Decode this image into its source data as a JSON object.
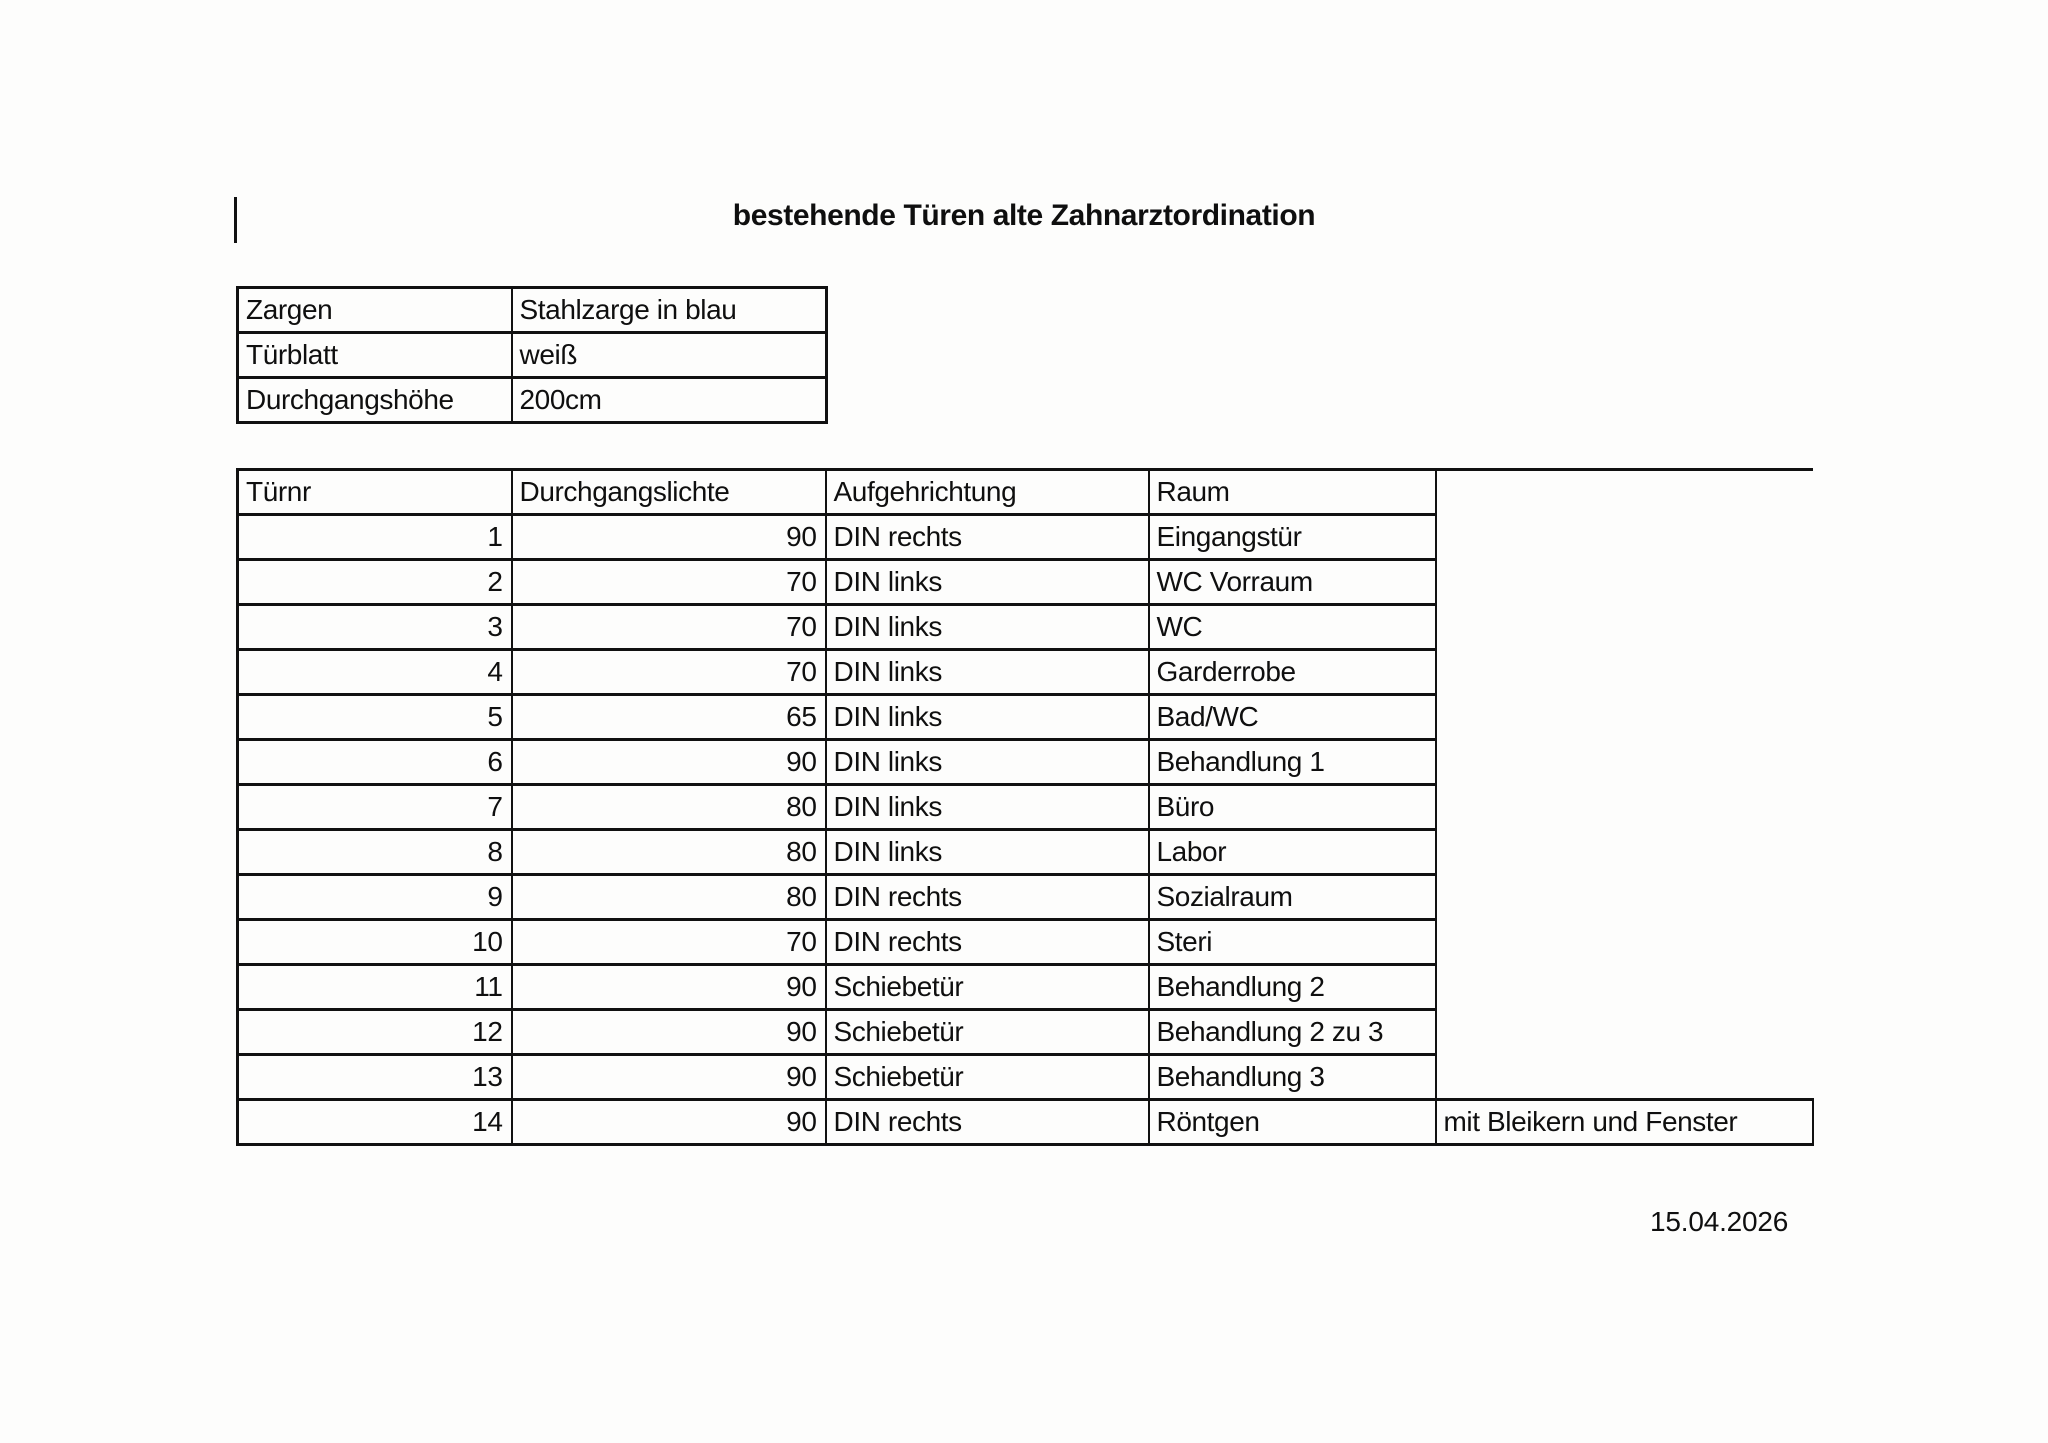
{
  "page": {
    "title": "bestehende Türen alte Zahnarztordination",
    "date": "15.04.2026",
    "background_color": "#fdfdfc",
    "text_color": "#0f0f0f",
    "border_color": "#111111"
  },
  "spec_table": {
    "rows": [
      {
        "label": "Zargen",
        "value": "Stahlzarge in blau"
      },
      {
        "label": "Türblatt",
        "value": "weiß"
      },
      {
        "label": "Durchgangshöhe",
        "value": "200cm"
      }
    ]
  },
  "doors_table": {
    "headers": [
      "Türnr",
      "Durchgangslichte",
      "Aufgehrichtung",
      "Raum"
    ],
    "rows": [
      {
        "turnr": "1",
        "durchgangslichte": "90",
        "aufgehrichtung": "DIN rechts",
        "raum": "Eingangstür",
        "note": ""
      },
      {
        "turnr": "2",
        "durchgangslichte": "70",
        "aufgehrichtung": "DIN links",
        "raum": "WC Vorraum",
        "note": ""
      },
      {
        "turnr": "3",
        "durchgangslichte": "70",
        "aufgehrichtung": "DIN links",
        "raum": "WC",
        "note": ""
      },
      {
        "turnr": "4",
        "durchgangslichte": "70",
        "aufgehrichtung": "DIN links",
        "raum": "Garderrobe",
        "note": ""
      },
      {
        "turnr": "5",
        "durchgangslichte": "65",
        "aufgehrichtung": "DIN links",
        "raum": "Bad/WC",
        "note": ""
      },
      {
        "turnr": "6",
        "durchgangslichte": "90",
        "aufgehrichtung": "DIN links",
        "raum": "Behandlung 1",
        "note": ""
      },
      {
        "turnr": "7",
        "durchgangslichte": "80",
        "aufgehrichtung": "DIN links",
        "raum": "Büro",
        "note": ""
      },
      {
        "turnr": "8",
        "durchgangslichte": "80",
        "aufgehrichtung": "DIN links",
        "raum": "Labor",
        "note": ""
      },
      {
        "turnr": "9",
        "durchgangslichte": "80",
        "aufgehrichtung": "DIN rechts",
        "raum": "Sozialraum",
        "note": ""
      },
      {
        "turnr": "10",
        "durchgangslichte": "70",
        "aufgehrichtung": "DIN rechts",
        "raum": "Steri",
        "note": ""
      },
      {
        "turnr": "11",
        "durchgangslichte": "90",
        "aufgehrichtung": "Schiebetür",
        "raum": "Behandlung 2",
        "note": ""
      },
      {
        "turnr": "12",
        "durchgangslichte": "90",
        "aufgehrichtung": "Schiebetür",
        "raum": "Behandlung 2 zu 3",
        "note": ""
      },
      {
        "turnr": "13",
        "durchgangslichte": "90",
        "aufgehrichtung": "Schiebetür",
        "raum": "Behandlung 3",
        "note": ""
      },
      {
        "turnr": "14",
        "durchgangslichte": "90",
        "aufgehrichtung": "DIN rechts",
        "raum": "Röntgen",
        "note": "mit Bleikern und Fenster"
      }
    ]
  }
}
